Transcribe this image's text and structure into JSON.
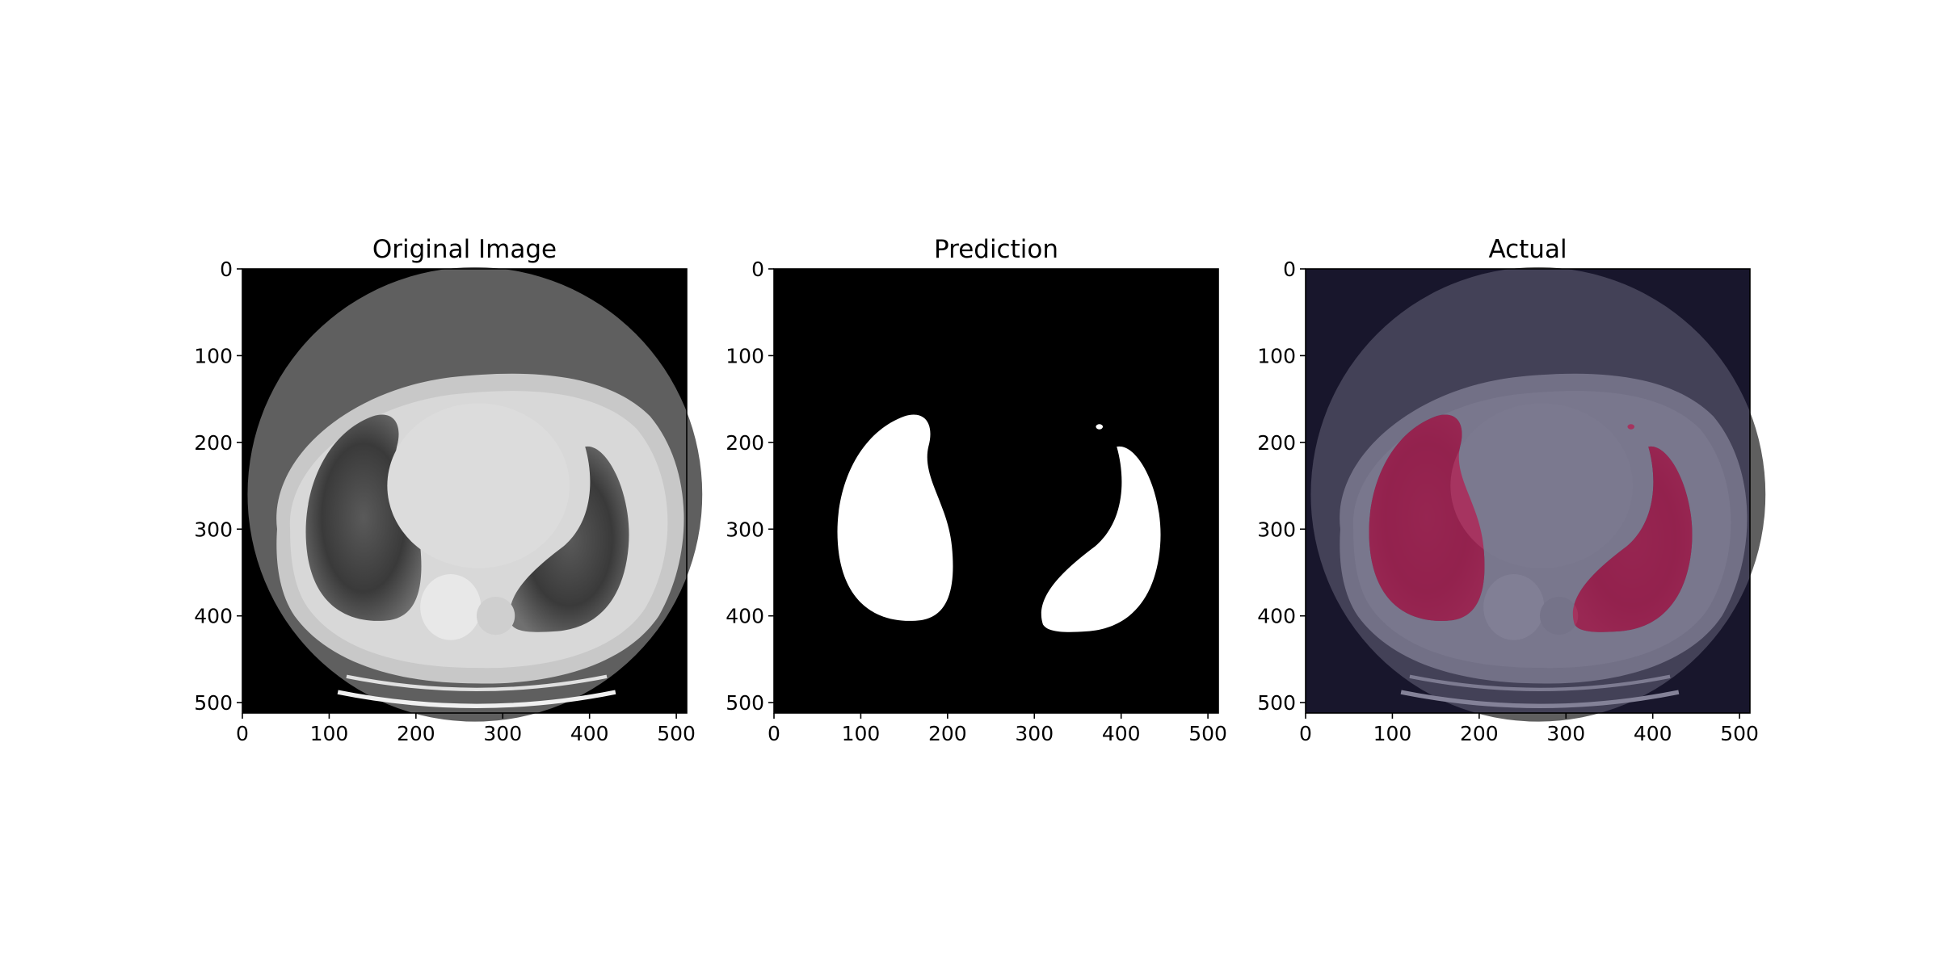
{
  "figure": {
    "panels": [
      {
        "id": "original",
        "title": "Original Image",
        "image_content": "ct-slice",
        "x_ticks": [
          "0",
          "100",
          "200",
          "300",
          "400",
          "500"
        ],
        "y_ticks": [
          "0",
          "100",
          "200",
          "300",
          "400",
          "500"
        ]
      },
      {
        "id": "prediction",
        "title": "Prediction",
        "image_content": "binary-mask",
        "x_ticks": [
          "0",
          "100",
          "200",
          "300",
          "400",
          "500"
        ],
        "y_ticks": [
          "0",
          "100",
          "200",
          "300",
          "400",
          "500"
        ]
      },
      {
        "id": "actual",
        "title": "Actual",
        "image_content": "ct-slice-with-mask-overlay",
        "x_ticks": [
          "0",
          "100",
          "200",
          "300",
          "400",
          "500"
        ],
        "y_ticks": [
          "0",
          "100",
          "200",
          "300",
          "400",
          "500"
        ]
      }
    ],
    "image_size": [
      512,
      512
    ],
    "colors": {
      "background": "#000000",
      "mask": "#ffffff",
      "overlay_tint": "#2c2850",
      "overlay_mask": "#b41e50"
    }
  }
}
